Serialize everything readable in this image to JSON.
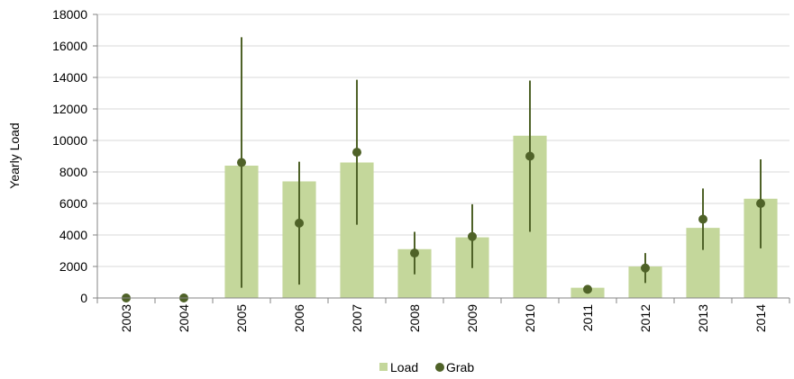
{
  "chart_data": {
    "type": "bar",
    "categories": [
      "2003",
      "2004",
      "2005",
      "2006",
      "2007",
      "2008",
      "2009",
      "2010",
      "2011",
      "2012",
      "2013",
      "2014"
    ],
    "ylabel": "Yearly Load",
    "ylim": [
      0,
      18000
    ],
    "yticks": [
      0,
      2000,
      4000,
      6000,
      8000,
      10000,
      12000,
      14000,
      16000,
      18000
    ],
    "ytick_labels": [
      "0",
      "2000",
      "4000",
      "6000",
      "8000",
      "10000",
      "12000",
      "14000",
      "16000",
      "18000"
    ],
    "grid": true,
    "legend_position": "bottom",
    "series": [
      {
        "name": "Load",
        "kind": "bar",
        "color": "#c4d79b",
        "values": [
          0,
          0,
          8400,
          7400,
          8600,
          3100,
          3850,
          10300,
          650,
          2000,
          4450,
          6300
        ]
      },
      {
        "name": "Grab",
        "kind": "point",
        "color": "#4f6228",
        "values": [
          0,
          0,
          8600,
          4750,
          9250,
          2850,
          3900,
          9000,
          550,
          1900,
          5000,
          6000
        ],
        "error_low": [
          0,
          0,
          650,
          850,
          4650,
          1500,
          1900,
          4200,
          350,
          950,
          3050,
          3150
        ],
        "error_high": [
          0,
          0,
          16550,
          8650,
          13850,
          4200,
          5950,
          13800,
          800,
          2850,
          6950,
          8800
        ]
      }
    ]
  }
}
